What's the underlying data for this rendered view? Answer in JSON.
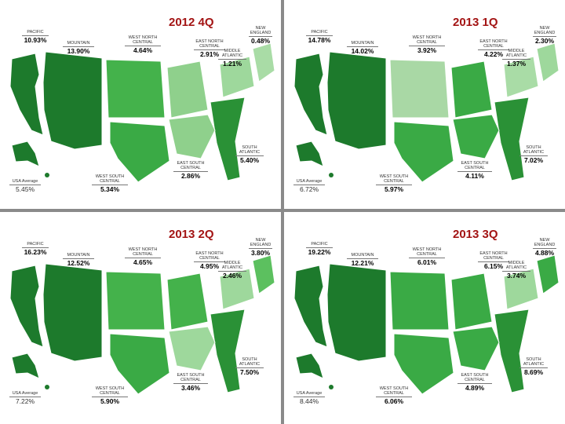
{
  "panels": [
    {
      "title": "2012 4Q",
      "usa_average": {
        "label": "USA Average",
        "value": "5.45%"
      },
      "regions": [
        {
          "name": "PACIFIC",
          "value": "10.93%",
          "color": "#1d7a2c"
        },
        {
          "name": "MOUNTAIN",
          "value": "13.90%",
          "color": "#1d7a2c"
        },
        {
          "name": "WEST NORTH CENTRAL",
          "value": "4.64%",
          "color": "#44b24b"
        },
        {
          "name": "EAST NORTH CENTRAL",
          "value": "2.91%",
          "color": "#8fd08c"
        },
        {
          "name": "MIDDLE ATLANTIC",
          "value": "1.21%",
          "color": "#9ed89c"
        },
        {
          "name": "NEW ENGLAND",
          "value": "0.48%",
          "color": "#a9dca6"
        },
        {
          "name": "SOUTH ATLANTIC",
          "value": "5.40%",
          "color": "#2a9136"
        },
        {
          "name": "EAST SOUTH CENTRAL",
          "value": "2.86%",
          "color": "#8fd08c"
        },
        {
          "name": "WEST SOUTH CENTRAL",
          "value": "5.34%",
          "color": "#3aaa45"
        }
      ]
    },
    {
      "title": "2013 1Q",
      "usa_average": {
        "label": "USA Average",
        "value": "6.72%"
      },
      "regions": [
        {
          "name": "PACIFIC",
          "value": "14.78%",
          "color": "#1d7a2c"
        },
        {
          "name": "MOUNTAIN",
          "value": "14.02%",
          "color": "#1d7a2c"
        },
        {
          "name": "WEST NORTH CENTRAL",
          "value": "3.92%",
          "color": "#a9d8a5"
        },
        {
          "name": "EAST NORTH CENTRAL",
          "value": "4.22%",
          "color": "#3aaa45"
        },
        {
          "name": "MIDDLE ATLANTIC",
          "value": "1.37%",
          "color": "#a9dca6"
        },
        {
          "name": "NEW ENGLAND",
          "value": "2.30%",
          "color": "#9ed89c"
        },
        {
          "name": "SOUTH ATLANTIC",
          "value": "7.02%",
          "color": "#2a9136"
        },
        {
          "name": "EAST SOUTH CENTRAL",
          "value": "4.11%",
          "color": "#3aaa45"
        },
        {
          "name": "WEST SOUTH CENTRAL",
          "value": "5.97%",
          "color": "#3aaa45"
        }
      ]
    },
    {
      "title": "2013 2Q",
      "usa_average": {
        "label": "USA Average",
        "value": "7.22%"
      },
      "regions": [
        {
          "name": "PACIFIC",
          "value": "16.23%",
          "color": "#1d7a2c"
        },
        {
          "name": "MOUNTAIN",
          "value": "12.52%",
          "color": "#1d7a2c"
        },
        {
          "name": "WEST NORTH CENTRAL",
          "value": "4.65%",
          "color": "#44b24b"
        },
        {
          "name": "EAST NORTH CENTRAL",
          "value": "4.95%",
          "color": "#44b24b"
        },
        {
          "name": "MIDDLE ATLANTIC",
          "value": "2.46%",
          "color": "#9ed89c"
        },
        {
          "name": "NEW ENGLAND",
          "value": "3.80%",
          "color": "#5cc05f"
        },
        {
          "name": "SOUTH ATLANTIC",
          "value": "7.50%",
          "color": "#2a9136"
        },
        {
          "name": "EAST SOUTH CENTRAL",
          "value": "3.46%",
          "color": "#9ed89c"
        },
        {
          "name": "WEST SOUTH CENTRAL",
          "value": "5.90%",
          "color": "#3aaa45"
        }
      ]
    },
    {
      "title": "2013 3Q",
      "usa_average": {
        "label": "USA Average",
        "value": "8.44%"
      },
      "regions": [
        {
          "name": "PACIFIC",
          "value": "19.22%",
          "color": "#1d7a2c"
        },
        {
          "name": "MOUNTAIN",
          "value": "12.21%",
          "color": "#1d7a2c"
        },
        {
          "name": "WEST NORTH CENTRAL",
          "value": "6.01%",
          "color": "#3aaa45"
        },
        {
          "name": "EAST NORTH CENTRAL",
          "value": "6.15%",
          "color": "#3aaa45"
        },
        {
          "name": "MIDDLE ATLANTIC",
          "value": "3.74%",
          "color": "#9ed89c"
        },
        {
          "name": "NEW ENGLAND",
          "value": "4.88%",
          "color": "#3aaa45"
        },
        {
          "name": "SOUTH ATLANTIC",
          "value": "8.69%",
          "color": "#2a9136"
        },
        {
          "name": "EAST SOUTH CENTRAL",
          "value": "4.89%",
          "color": "#3aaa45"
        },
        {
          "name": "WEST SOUTH CENTRAL",
          "value": "6.06%",
          "color": "#3aaa45"
        }
      ]
    }
  ]
}
